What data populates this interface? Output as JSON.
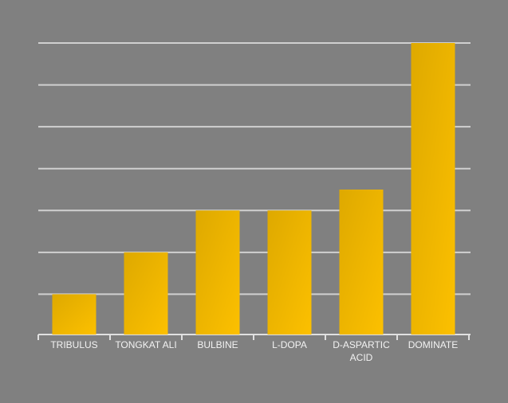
{
  "chart_data": {
    "type": "bar",
    "categories": [
      "TRIBULUS",
      "TONGKAT ALI",
      "BULBINE",
      "L-DOPA",
      "D-ASPARTIC ACID",
      "DOMINATE"
    ],
    "values": [
      1,
      2,
      3,
      3,
      3.5,
      7
    ],
    "color": "#fcc000",
    "ylim": [
      0,
      7
    ],
    "yticks": [
      1,
      2,
      3,
      4,
      5,
      6,
      7
    ],
    "grid": true
  }
}
